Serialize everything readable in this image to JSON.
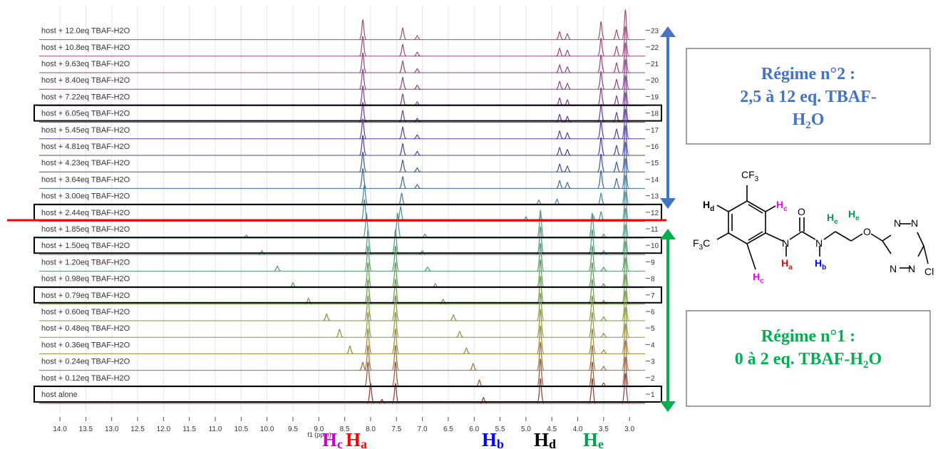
{
  "chart_data": {
    "type": "nmr-stack",
    "x_label": "f1 (ppm)",
    "xlim": [
      14.4,
      2.7
    ],
    "xticks": [
      {
        "value": 14,
        "label": "14.0"
      },
      {
        "value": 13.5,
        "label": "13.5"
      },
      {
        "value": 13,
        "label": "13.0"
      },
      {
        "value": 12.5,
        "label": "12.5"
      },
      {
        "value": 12,
        "label": "12.0"
      },
      {
        "value": 11.5,
        "label": "11.5"
      },
      {
        "value": 11,
        "label": "11.0"
      },
      {
        "value": 10.5,
        "label": "10.5"
      },
      {
        "value": 10,
        "label": "10.0"
      },
      {
        "value": 9.5,
        "label": "9.5"
      },
      {
        "value": 9,
        "label": "9.0"
      },
      {
        "value": 8.5,
        "label": "8.5"
      },
      {
        "value": 8,
        "label": "8.0"
      },
      {
        "value": 7.5,
        "label": "7.5"
      },
      {
        "value": 7,
        "label": "7.0"
      },
      {
        "value": 6.5,
        "label": "6.5"
      },
      {
        "value": 6,
        "label": "6.0"
      },
      {
        "value": 5.5,
        "label": "5.5"
      },
      {
        "value": 5,
        "label": "5.0"
      },
      {
        "value": 4.5,
        "label": "4.5"
      },
      {
        "value": 4,
        "label": "4.0"
      },
      {
        "value": 3.5,
        "label": "3.5"
      },
      {
        "value": 3,
        "label": "3.0"
      }
    ],
    "traces": [
      {
        "label": "host + 12.0eq TBAF-H2O",
        "number": 23,
        "color": "#a0506e",
        "peaks": [
          [
            8.15,
            2
          ],
          [
            7.38,
            1.2
          ],
          [
            7.1,
            0.4
          ],
          [
            4.35,
            0.8
          ],
          [
            4.2,
            0.6
          ],
          [
            3.55,
            1.8
          ],
          [
            3.25,
            1
          ],
          [
            3.08,
            3
          ]
        ]
      },
      {
        "label": "host + 10.8eq TBAF-H2O",
        "number": 22,
        "color": "#9a4a75",
        "peaks": [
          [
            8.15,
            2
          ],
          [
            7.38,
            1.2
          ],
          [
            7.1,
            0.4
          ],
          [
            4.35,
            0.8
          ],
          [
            4.2,
            0.6
          ],
          [
            3.55,
            1.8
          ],
          [
            3.25,
            1
          ],
          [
            3.08,
            3
          ]
        ]
      },
      {
        "label": "host + 9.63eq TBAF-H2O",
        "number": 21,
        "color": "#93467f",
        "peaks": [
          [
            8.15,
            2
          ],
          [
            7.38,
            1.2
          ],
          [
            7.1,
            0.4
          ],
          [
            4.35,
            0.8
          ],
          [
            4.2,
            0.6
          ],
          [
            3.55,
            1.8
          ],
          [
            3.25,
            1
          ],
          [
            3.08,
            3
          ]
        ]
      },
      {
        "label": "host + 8.40eq TBAF-H2O",
        "number": 20,
        "color": "#8a428a",
        "peaks": [
          [
            8.15,
            2
          ],
          [
            7.38,
            1.2
          ],
          [
            7.1,
            0.4
          ],
          [
            4.35,
            0.8
          ],
          [
            4.2,
            0.6
          ],
          [
            3.55,
            1.8
          ],
          [
            3.25,
            1
          ],
          [
            3.08,
            3
          ]
        ]
      },
      {
        "label": "host + 7.22eq TBAF-H2O",
        "number": 19,
        "color": "#7c3f93",
        "peaks": [
          [
            8.15,
            2
          ],
          [
            7.38,
            1.2
          ],
          [
            7.1,
            0.4
          ],
          [
            4.35,
            0.8
          ],
          [
            4.2,
            0.6
          ],
          [
            3.55,
            1.8
          ],
          [
            3.25,
            1
          ],
          [
            3.08,
            3
          ]
        ]
      },
      {
        "label": "host + 6.05eq TBAF-H2O",
        "number": 18,
        "color": "#6b3c98",
        "boxed": true,
        "peaks": [
          [
            8.15,
            2
          ],
          [
            7.38,
            1.2
          ],
          [
            7.1,
            0.4
          ],
          [
            4.35,
            0.8
          ],
          [
            4.2,
            0.6
          ],
          [
            3.55,
            1.8
          ],
          [
            3.25,
            1
          ],
          [
            3.08,
            3
          ]
        ]
      },
      {
        "label": "host + 5.45eq TBAF-H2O",
        "number": 17,
        "color": "#5a3e9a",
        "peaks": [
          [
            8.15,
            2
          ],
          [
            7.38,
            1.2
          ],
          [
            7.1,
            0.4
          ],
          [
            4.35,
            0.8
          ],
          [
            4.2,
            0.6
          ],
          [
            3.55,
            1.8
          ],
          [
            3.25,
            1
          ],
          [
            3.08,
            3
          ]
        ]
      },
      {
        "label": "host + 4.81eq TBAF-H2O",
        "number": 16,
        "color": "#4a4598",
        "peaks": [
          [
            8.15,
            2
          ],
          [
            7.38,
            1.2
          ],
          [
            7.1,
            0.4
          ],
          [
            4.35,
            0.8
          ],
          [
            4.2,
            0.6
          ],
          [
            3.55,
            1.8
          ],
          [
            3.25,
            1
          ],
          [
            3.08,
            3
          ]
        ]
      },
      {
        "label": "host + 4.23eq TBAF-H2O",
        "number": 15,
        "color": "#3f5496",
        "peaks": [
          [
            8.15,
            2
          ],
          [
            7.38,
            1.2
          ],
          [
            7.1,
            0.4
          ],
          [
            4.35,
            0.8
          ],
          [
            4.2,
            0.6
          ],
          [
            3.55,
            1.8
          ],
          [
            3.25,
            1
          ],
          [
            3.08,
            3
          ]
        ]
      },
      {
        "label": "host + 3.64eq TBAF-H2O",
        "number": 14,
        "color": "#3e6a9a",
        "peaks": [
          [
            8.15,
            2
          ],
          [
            7.38,
            1.2
          ],
          [
            7.1,
            0.4
          ],
          [
            4.35,
            0.8
          ],
          [
            4.2,
            0.6
          ],
          [
            3.55,
            1.8
          ],
          [
            3.25,
            1
          ],
          [
            3.08,
            3
          ]
        ]
      },
      {
        "label": "host + 3.00eq TBAF-H2O",
        "number": 13,
        "color": "#43809d",
        "peaks": [
          [
            8.12,
            2
          ],
          [
            7.4,
            1.2
          ],
          [
            4.75,
            0.5
          ],
          [
            4.4,
            0.6
          ],
          [
            3.55,
            1.2
          ],
          [
            3.08,
            3
          ]
        ]
      },
      {
        "label": "host + 2.44eq TBAF-H2O",
        "number": 12,
        "color": "#4b8f96",
        "boxed": true,
        "peaks": [
          [
            8.12,
            2.2
          ],
          [
            7.42,
            1.5
          ],
          [
            5,
            0.5
          ],
          [
            4.72,
            0.6
          ],
          [
            3.7,
            0.6
          ],
          [
            3.55,
            1
          ],
          [
            3.08,
            3
          ]
        ]
      },
      {
        "label": "host + 1.85eq TBAF-H2O",
        "number": 11,
        "color": "#4f968a",
        "peaks": [
          [
            10.4,
            0.3
          ],
          [
            8.08,
            2.5
          ],
          [
            7.48,
            2.5
          ],
          [
            6.95,
            0.4
          ],
          [
            4.72,
            2.8
          ],
          [
            3.72,
            2.5
          ],
          [
            3.5,
            0.4
          ],
          [
            3.08,
            3
          ]
        ]
      },
      {
        "label": "host + 1.50eq TBAF-H2O",
        "number": 10,
        "color": "#4f9a78",
        "boxed": true,
        "peaks": [
          [
            10.1,
            0.4
          ],
          [
            8.05,
            2.5
          ],
          [
            7.52,
            2.5
          ],
          [
            7,
            0.4
          ],
          [
            4.72,
            2.8
          ],
          [
            3.72,
            2.5
          ],
          [
            3.5,
            0.4
          ],
          [
            3.08,
            3
          ]
        ]
      },
      {
        "label": "host + 1.20eq TBAF-H2O",
        "number": 9,
        "color": "#529a66",
        "peaks": [
          [
            9.8,
            0.5
          ],
          [
            8.05,
            2.5
          ],
          [
            7.52,
            2.5
          ],
          [
            6.9,
            0.4
          ],
          [
            4.72,
            2.8
          ],
          [
            3.72,
            2.5
          ],
          [
            3.5,
            0.4
          ],
          [
            3.08,
            3
          ]
        ]
      },
      {
        "label": "host + 0.98eq TBAF-H2O",
        "number": 8,
        "color": "#5c9a55",
        "peaks": [
          [
            9.5,
            0.5
          ],
          [
            8.05,
            2.5
          ],
          [
            7.52,
            2.5
          ],
          [
            6.75,
            0.4
          ],
          [
            4.72,
            2.8
          ],
          [
            3.72,
            2.5
          ],
          [
            3.5,
            0.4
          ],
          [
            3.08,
            3
          ]
        ]
      },
      {
        "label": "host + 0.79eq TBAF-H2O",
        "number": 7,
        "color": "#6a9a48",
        "boxed": true,
        "peaks": [
          [
            9.2,
            0.6
          ],
          [
            8.05,
            2.5
          ],
          [
            7.52,
            2.5
          ],
          [
            6.6,
            0.5
          ],
          [
            4.72,
            2.8
          ],
          [
            3.72,
            2.5
          ],
          [
            3.5,
            0.4
          ],
          [
            3.08,
            3
          ]
        ]
      },
      {
        "label": "host + 0.60eq TBAF-H2O",
        "number": 6,
        "color": "#7d9a3f",
        "peaks": [
          [
            8.85,
            0.7
          ],
          [
            8.05,
            2.5
          ],
          [
            7.52,
            2.5
          ],
          [
            6.4,
            0.6
          ],
          [
            4.72,
            2.8
          ],
          [
            3.72,
            2.5
          ],
          [
            3.5,
            0.4
          ],
          [
            3.08,
            3
          ]
        ]
      },
      {
        "label": "host + 0.48eq TBAF-H2O",
        "number": 5,
        "color": "#8f963a",
        "peaks": [
          [
            8.6,
            0.8
          ],
          [
            8.05,
            2.5
          ],
          [
            7.52,
            2.5
          ],
          [
            6.28,
            0.6
          ],
          [
            4.72,
            2.8
          ],
          [
            3.72,
            2.5
          ],
          [
            3.5,
            0.4
          ],
          [
            3.08,
            3
          ]
        ]
      },
      {
        "label": "host + 0.36eq TBAF-H2O",
        "number": 4,
        "color": "#9a8a38",
        "peaks": [
          [
            8.4,
            0.8
          ],
          [
            8.05,
            2.5
          ],
          [
            7.52,
            2.5
          ],
          [
            6.15,
            0.6
          ],
          [
            4.72,
            2.8
          ],
          [
            3.72,
            2.5
          ],
          [
            3.5,
            0.4
          ],
          [
            3.08,
            3
          ]
        ]
      },
      {
        "label": "host + 0.24eq TBAF-H2O",
        "number": 3,
        "color": "#9a6f36",
        "peaks": [
          [
            8.15,
            0.8
          ],
          [
            8.05,
            2.5
          ],
          [
            7.52,
            2.5
          ],
          [
            6.02,
            0.7
          ],
          [
            4.72,
            2.8
          ],
          [
            3.72,
            2.5
          ],
          [
            3.5,
            0.4
          ],
          [
            3.08,
            3
          ]
        ]
      },
      {
        "label": "host + 0.12eq TBAF-H2O",
        "number": 2,
        "color": "#965535",
        "peaks": [
          [
            8.05,
            2.5
          ],
          [
            7.52,
            2.5
          ],
          [
            5.9,
            0.7
          ],
          [
            4.72,
            2.8
          ],
          [
            3.72,
            2.5
          ],
          [
            3.5,
            0.4
          ],
          [
            3.08,
            3
          ]
        ]
      },
      {
        "label": "host alone",
        "number": 1,
        "color": "#8e3a35",
        "boxed": true,
        "peaks": [
          [
            8,
            2
          ],
          [
            7.78,
            0.4
          ],
          [
            7.52,
            2
          ],
          [
            5.82,
            0.6
          ],
          [
            4.72,
            2.5
          ],
          [
            3.72,
            2.5
          ],
          [
            3.08,
            3
          ]
        ]
      }
    ],
    "proton_labels": [
      {
        "text": "H",
        "sub": "c",
        "color": "#cc00cc"
      },
      {
        "text": "H",
        "sub": "a",
        "color": "#ff0000"
      },
      {
        "text": "H",
        "sub": "b",
        "color": "#0000ff"
      },
      {
        "text": "H",
        "sub": "d",
        "color": "#000000"
      },
      {
        "text": "H",
        "sub": "e",
        "color": "#00a050"
      }
    ],
    "regime2": {
      "color": "#4472c4",
      "lines": [
        "Régime n°2 :",
        "2,5 à 12 eq. TBAF-"
      ],
      "last": [
        "H",
        "2",
        "O"
      ]
    },
    "regime1": {
      "color": "#00b050",
      "lines": [
        "Régime n°1 :"
      ],
      "last": [
        "0 à 2 eq. TBAF-H",
        "2",
        "O"
      ]
    },
    "molecule": {
      "atoms": [
        "CF",
        "3",
        "H",
        "d",
        "F",
        "3",
        "C",
        "H",
        "c",
        "H",
        "c",
        "O",
        "N",
        "H",
        "a",
        "N",
        "H",
        "b",
        "H",
        "e",
        "H",
        "e",
        "O",
        "N",
        "N",
        "N",
        "N",
        "Cl"
      ]
    }
  }
}
